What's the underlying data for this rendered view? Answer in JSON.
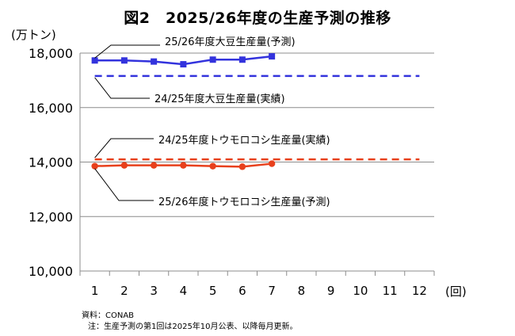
{
  "chart_data": {
    "type": "line",
    "title": "図2　2025/26年度の生産予測の推移",
    "ylabel": "(万トン)",
    "xlabel": "(回)",
    "ylim": [
      10000,
      18000
    ],
    "yticks": [
      10000,
      12000,
      14000,
      16000,
      18000
    ],
    "ytick_labels": [
      "10,000",
      "12,000",
      "14,000",
      "16,000",
      "18,000"
    ],
    "x": [
      1,
      2,
      3,
      4,
      5,
      6,
      7,
      8,
      9,
      10,
      11,
      12
    ],
    "grid": "horizontal",
    "series": [
      {
        "name": "25/26年度大豆生産量(予測)",
        "style": "line-square",
        "color": "#3333dd",
        "x": [
          1,
          2,
          3,
          4,
          5,
          6,
          7
        ],
        "values": [
          17730,
          17730,
          17690,
          17590,
          17760,
          17760,
          17880
        ]
      },
      {
        "name": "24/25年度大豆生産量(実績)",
        "style": "dashed",
        "color": "#3333dd",
        "x": [
          1,
          12
        ],
        "values": [
          17160,
          17160
        ]
      },
      {
        "name": "24/25年度トウモロコシ生産量(実績)",
        "style": "dashed",
        "color": "#e8401c",
        "x": [
          1,
          12
        ],
        "values": [
          14100,
          14100
        ]
      },
      {
        "name": "25/26年度トウモロコシ生産量(予測)",
        "style": "line-circle",
        "color": "#e8401c",
        "x": [
          1,
          2,
          3,
          4,
          5,
          6,
          7
        ],
        "values": [
          13850,
          13880,
          13880,
          13880,
          13850,
          13830,
          13940
        ]
      }
    ]
  },
  "footnotes": {
    "source": "資料：CONAB",
    "note": "注：生産予測の第1回は2025年10月公表、以降毎月更新。"
  }
}
